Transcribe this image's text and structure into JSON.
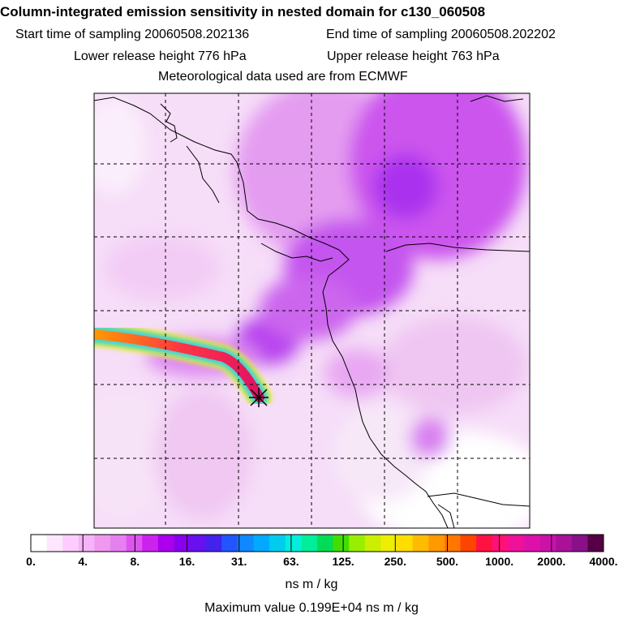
{
  "header": {
    "title": "Column-integrated emission sensitivity in nested domain for c130_060508",
    "start_time": "Start time of sampling 20060508.202136",
    "end_time": "End time of sampling 20060508.202202",
    "lower_release": "Lower release height  776 hPa",
    "upper_release": "Upper release height  763 hPa",
    "met_data": "Meteorological data used are from ECMWF"
  },
  "map": {
    "release_marker": "release-site",
    "background_color": "#ffffff"
  },
  "colorbar": {
    "labels": [
      "0.",
      "4.",
      "8.",
      "16.",
      "31.",
      "63.",
      "125.",
      "250.",
      "500.",
      "1000.",
      "2000.",
      "4000."
    ],
    "colors": [
      "#ffffff",
      "#ffe6ff",
      "#ffccff",
      "#f7b3f7",
      "#ee99ee",
      "#e680f0",
      "#dd55ee",
      "#cc22ee",
      "#aa00ee",
      "#8800ee",
      "#6611ee",
      "#4422ee",
      "#2255ff",
      "#1188ff",
      "#00aaff",
      "#00ccee",
      "#00eedd",
      "#00ee99",
      "#00dd55",
      "#44dd00",
      "#99ee00",
      "#ccee00",
      "#eeee00",
      "#ffdd00",
      "#ffbb00",
      "#ff9900",
      "#ff7700",
      "#ff4400",
      "#ff1144",
      "#ff1177",
      "#ee1199",
      "#dd11aa",
      "#cc11aa",
      "#aa1199",
      "#881188",
      "#550044"
    ],
    "units": "ns m / kg",
    "max_value": "Maximum value  0.199E+04 ns m / kg"
  }
}
